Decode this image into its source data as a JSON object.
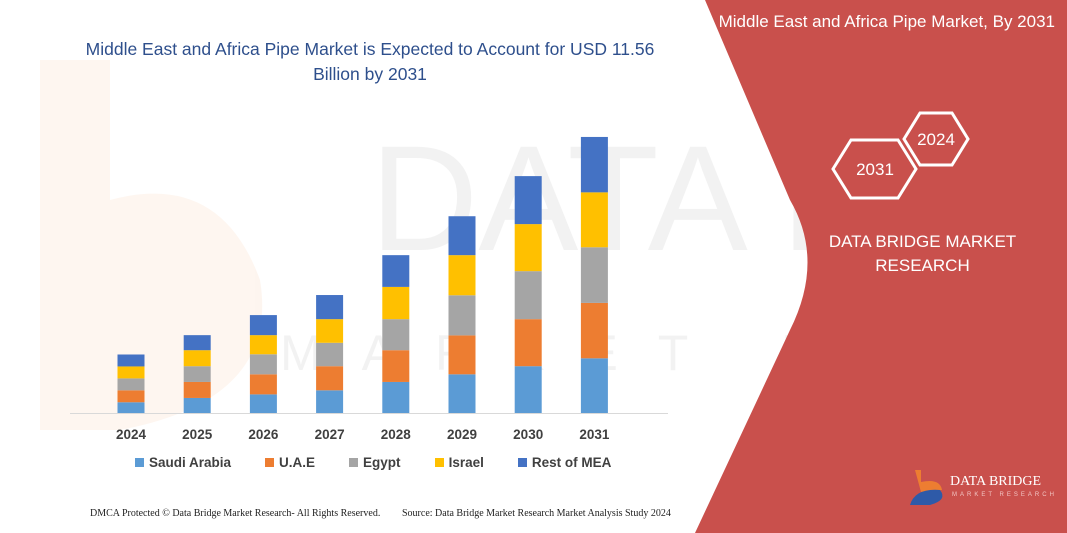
{
  "header": {
    "title": "Middle East and Africa Pipe Market is Expected to Account for USD 11.56 Billion by 2031"
  },
  "side_panel": {
    "title": "Middle East and Africa Pipe Market, By 2031",
    "hexagons": [
      "2024",
      "2031"
    ],
    "brand": "DATA BRIDGE MARKET RESEARCH",
    "logo_text": "DATA BRIDGE",
    "logo_subtext": "MARKET RESEARCH",
    "color": "#c9504c"
  },
  "footer": {
    "left": "DMCA Protected © Data Bridge Market Research-  All Rights Reserved.",
    "right": "Source: Data Bridge Market Research  Market Analysis Study 2024"
  },
  "chart_data": {
    "type": "bar",
    "stacked": true,
    "title": "Middle East and Africa Pipe Market is Expected to Account for USD 11.56 Billion by 2031",
    "xlabel": "",
    "ylabel": "",
    "grid": false,
    "y_axis_shown": false,
    "legend_position": "bottom",
    "categories": [
      "2024",
      "2025",
      "2026",
      "2027",
      "2028",
      "2029",
      "2030",
      "2031"
    ],
    "series": [
      {
        "name": "Saudi Arabia",
        "color": "#5b9bd5",
        "values": [
          0.45,
          0.63,
          0.78,
          0.95,
          1.3,
          1.62,
          1.96,
          2.29
        ]
      },
      {
        "name": "U.A.E",
        "color": "#ed7d31",
        "values": [
          0.5,
          0.67,
          0.84,
          1.01,
          1.33,
          1.63,
          1.97,
          2.32
        ]
      },
      {
        "name": "Egypt",
        "color": "#a5a5a5",
        "values": [
          0.5,
          0.66,
          0.84,
          0.98,
          1.3,
          1.68,
          2.01,
          2.33
        ]
      },
      {
        "name": "Israel",
        "color": "#ffc000",
        "values": [
          0.5,
          0.67,
          0.8,
          0.99,
          1.35,
          1.68,
          1.97,
          2.3
        ]
      },
      {
        "name": "Rest of MEA",
        "color": "#4472c4",
        "values": [
          0.5,
          0.63,
          0.84,
          1.01,
          1.33,
          1.63,
          2.01,
          2.32
        ]
      }
    ]
  }
}
